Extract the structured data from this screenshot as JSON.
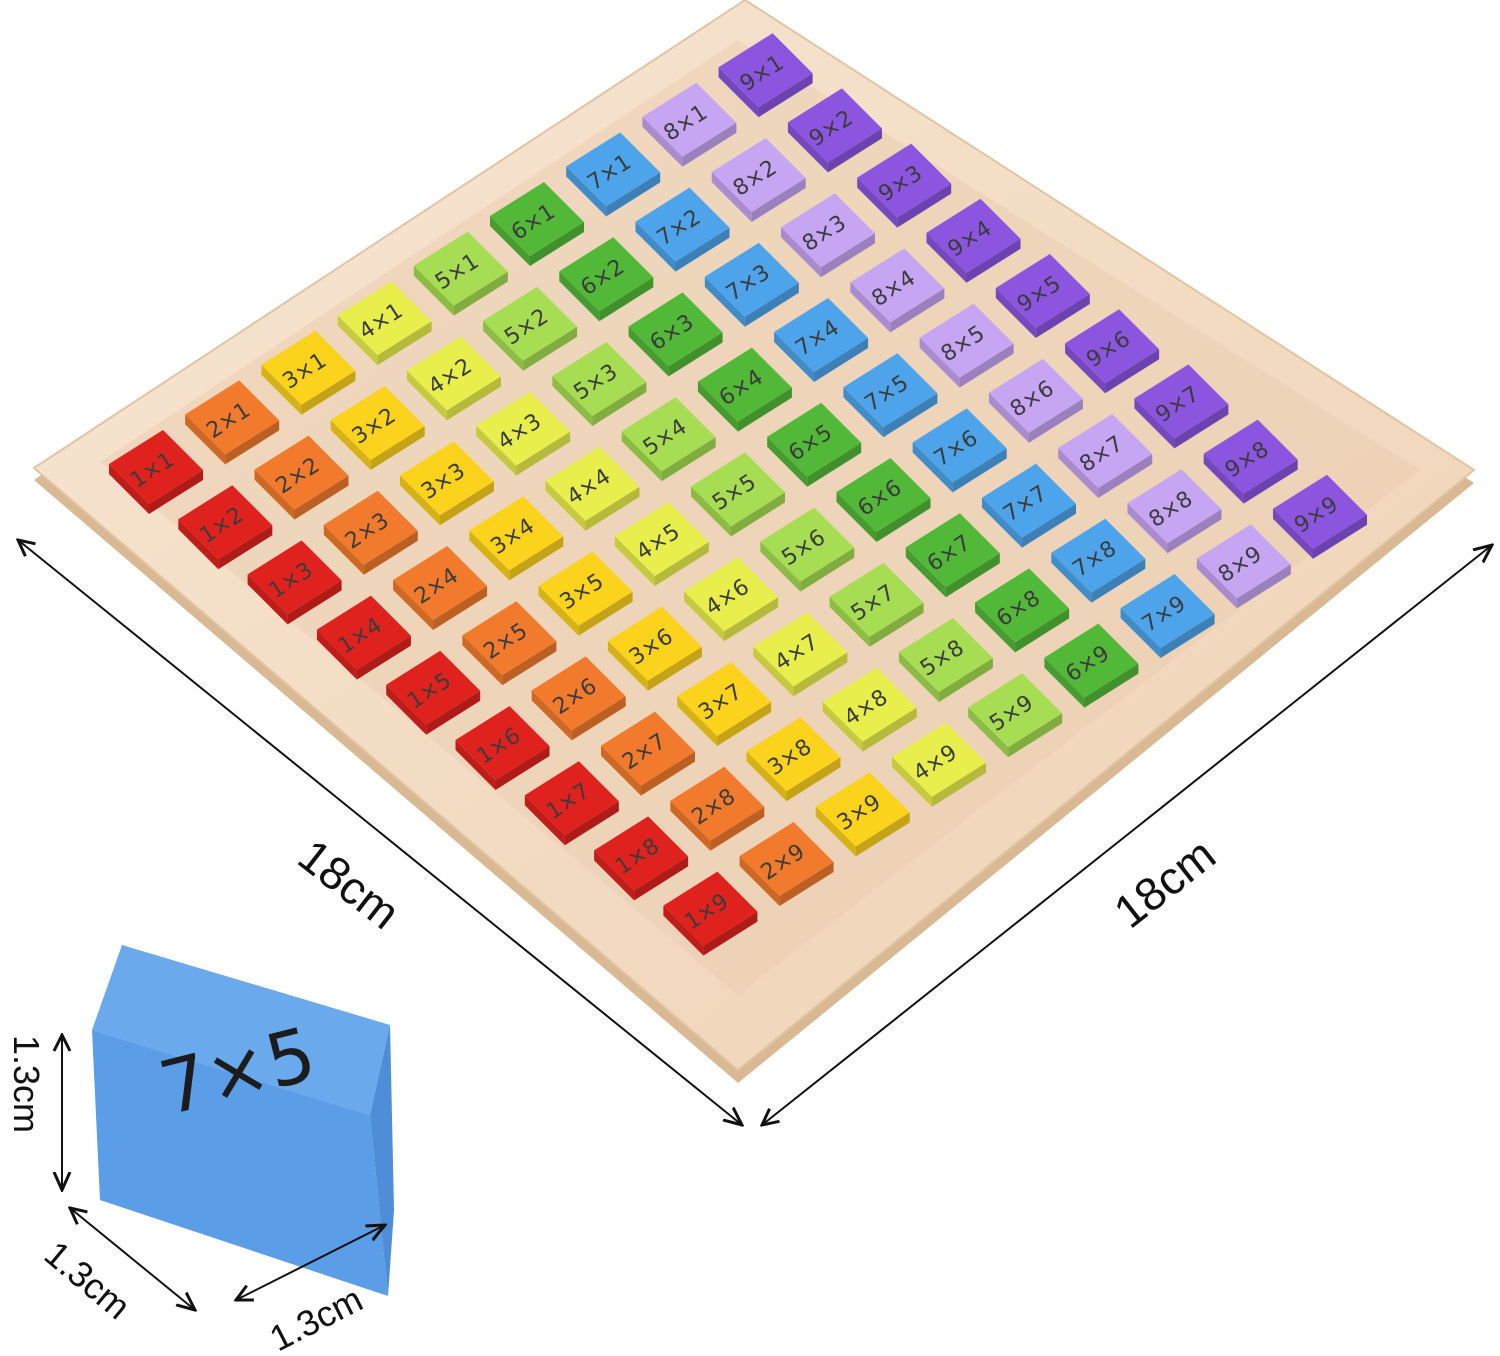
{
  "board": {
    "rows": 9,
    "cols": 9,
    "tiles_note_format": "{row}×{col}",
    "row_colors": {
      "1": "#e0221e",
      "2": "#f17a2c",
      "3": "#fbd21c",
      "4": "#e8ee4c",
      "5": "#a6dd52",
      "6": "#52b838",
      "7": "#4da4ea",
      "8": "#c6a5f2",
      "9": "#8b55e0"
    },
    "wood_color": "#f4dcc4"
  },
  "dimensions": {
    "left_edge": "18cm",
    "right_edge": "18cm"
  },
  "cube": {
    "face_label": "7×5",
    "color": "#5e9ee4",
    "height": "1.3cm",
    "width": "1.3cm",
    "depth": "1.3cm"
  }
}
